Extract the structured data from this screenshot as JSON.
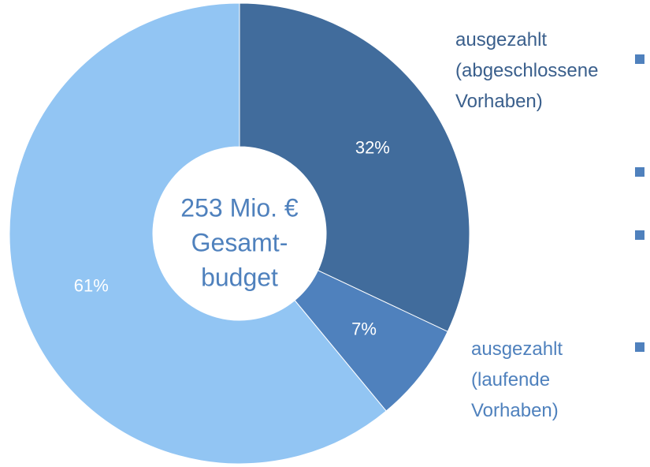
{
  "chart_data": {
    "type": "pie",
    "center_text": [
      "253 Mio. €",
      "Gesamt-",
      "budget"
    ],
    "categories": [
      "ausgezahlt (abgeschlossene Vorhaben)",
      "ausgezahlt (laufende Vorhaben)",
      null
    ],
    "values": [
      32,
      7,
      61
    ],
    "value_labels": [
      "32%",
      "7%",
      "61%"
    ],
    "colors": [
      "#416c9c",
      "#4f81bd",
      "#92c5f3"
    ],
    "label_colors": [
      "#3a5f8c",
      "#4f81bd",
      null
    ]
  }
}
